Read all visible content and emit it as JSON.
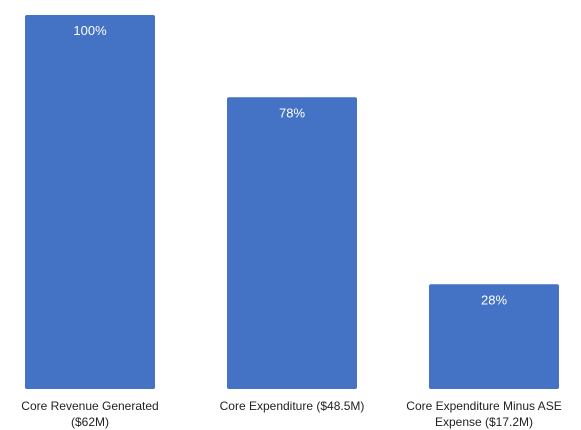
{
  "chart_data": {
    "type": "bar",
    "categories": [
      [
        "Core Revenue Generated",
        "($62M)"
      ],
      [
        "Core Expenditure ($48.5M)"
      ],
      [
        "Core Expenditure Minus ASE",
        "Expense ($17.2M)"
      ]
    ],
    "values": [
      100,
      78,
      28
    ],
    "value_labels": [
      "100%",
      "78%",
      "28%"
    ],
    "ylim": [
      0,
      100
    ],
    "grid": false,
    "bar_color": "#4472C4",
    "label_color": "#FFFFFF"
  }
}
